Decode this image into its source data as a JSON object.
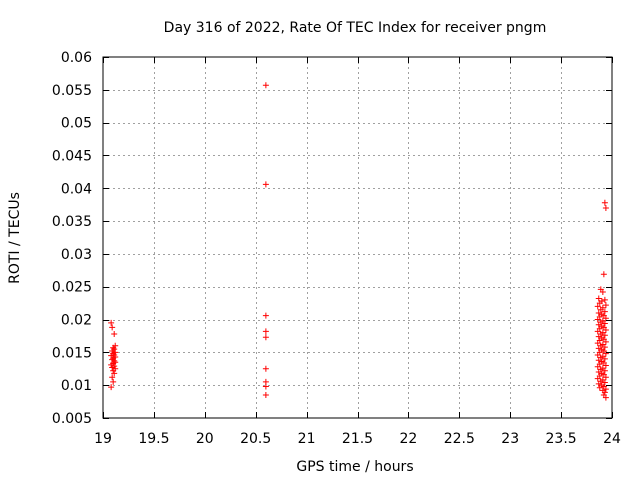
{
  "chart_data": {
    "type": "scatter",
    "title": "Day 316 of 2022, Rate Of TEC Index for receiver pngm",
    "xlabel": "GPS time / hours",
    "ylabel": "ROTI / TECUs",
    "xlim": [
      19,
      24
    ],
    "ylim": [
      0.005,
      0.06
    ],
    "x_ticks": [
      19,
      19.5,
      20,
      20.5,
      21,
      21.5,
      22,
      22.5,
      23,
      23.5,
      24
    ],
    "x_tick_labels": [
      "19",
      "19.5",
      "20",
      "20.5",
      "21",
      "21.5",
      "22",
      "22.5",
      "23",
      "23.5",
      "24"
    ],
    "y_ticks": [
      0.005,
      0.01,
      0.015,
      0.02,
      0.025,
      0.03,
      0.035,
      0.04,
      0.045,
      0.05,
      0.055,
      0.06
    ],
    "y_tick_labels": [
      "0.005",
      "0.01",
      "0.015",
      "0.02",
      "0.025",
      "0.03",
      "0.035",
      "0.04",
      "0.045",
      "0.05",
      "0.055",
      "0.06"
    ],
    "grid": true,
    "marker": "+",
    "marker_color": "#ff0000",
    "grid_color": "#a0a0a0",
    "series": [
      {
        "name": "ROTI",
        "points": [
          [
            19.08,
            0.0195
          ],
          [
            19.09,
            0.0188
          ],
          [
            19.11,
            0.0178
          ],
          [
            19.12,
            0.016
          ],
          [
            19.1,
            0.0157
          ],
          [
            19.11,
            0.0155
          ],
          [
            19.09,
            0.0152
          ],
          [
            19.12,
            0.015
          ],
          [
            19.1,
            0.0148
          ],
          [
            19.11,
            0.0146
          ],
          [
            19.08,
            0.0145
          ],
          [
            19.12,
            0.0143
          ],
          [
            19.1,
            0.0141
          ],
          [
            19.09,
            0.0139
          ],
          [
            19.11,
            0.0137
          ],
          [
            19.12,
            0.0135
          ],
          [
            19.1,
            0.0133
          ],
          [
            19.08,
            0.0131
          ],
          [
            19.11,
            0.0129
          ],
          [
            19.09,
            0.0127
          ],
          [
            19.12,
            0.0125
          ],
          [
            19.1,
            0.0122
          ],
          [
            19.11,
            0.0118
          ],
          [
            19.09,
            0.0112
          ],
          [
            19.1,
            0.0105
          ],
          [
            19.08,
            0.0097
          ],
          [
            20.6,
            0.0557
          ],
          [
            20.6,
            0.0406
          ],
          [
            20.6,
            0.0206
          ],
          [
            20.6,
            0.0182
          ],
          [
            20.6,
            0.0173
          ],
          [
            20.6,
            0.0125
          ],
          [
            20.6,
            0.0105
          ],
          [
            20.6,
            0.0098
          ],
          [
            20.6,
            0.0085
          ],
          [
            23.93,
            0.0378
          ],
          [
            23.94,
            0.037
          ],
          [
            23.92,
            0.0269
          ],
          [
            23.89,
            0.0246
          ],
          [
            23.91,
            0.0242
          ],
          [
            23.87,
            0.0232
          ],
          [
            23.93,
            0.023
          ],
          [
            23.9,
            0.0228
          ],
          [
            23.88,
            0.0225
          ],
          [
            23.94,
            0.0222
          ],
          [
            23.86,
            0.022
          ],
          [
            23.91,
            0.0218
          ],
          [
            23.89,
            0.0215
          ],
          [
            23.93,
            0.0212
          ],
          [
            23.87,
            0.021
          ],
          [
            23.9,
            0.0208
          ],
          [
            23.92,
            0.0206
          ],
          [
            23.88,
            0.0204
          ],
          [
            23.94,
            0.0202
          ],
          [
            23.86,
            0.02
          ],
          [
            23.91,
            0.0198
          ],
          [
            23.89,
            0.0196
          ],
          [
            23.93,
            0.0194
          ],
          [
            23.87,
            0.0192
          ],
          [
            23.9,
            0.019
          ],
          [
            23.92,
            0.0188
          ],
          [
            23.88,
            0.0186
          ],
          [
            23.94,
            0.0184
          ],
          [
            23.86,
            0.0182
          ],
          [
            23.91,
            0.018
          ],
          [
            23.89,
            0.0178
          ],
          [
            23.93,
            0.0176
          ],
          [
            23.87,
            0.0174
          ],
          [
            23.9,
            0.0172
          ],
          [
            23.92,
            0.017
          ],
          [
            23.88,
            0.0168
          ],
          [
            23.94,
            0.0166
          ],
          [
            23.86,
            0.0164
          ],
          [
            23.91,
            0.0162
          ],
          [
            23.89,
            0.016
          ],
          [
            23.93,
            0.0158
          ],
          [
            23.87,
            0.0156
          ],
          [
            23.9,
            0.0154
          ],
          [
            23.92,
            0.0152
          ],
          [
            23.88,
            0.015
          ],
          [
            23.94,
            0.0148
          ],
          [
            23.86,
            0.0146
          ],
          [
            23.91,
            0.0144
          ],
          [
            23.89,
            0.0142
          ],
          [
            23.93,
            0.014
          ],
          [
            23.87,
            0.0138
          ],
          [
            23.9,
            0.0136
          ],
          [
            23.92,
            0.0134
          ],
          [
            23.88,
            0.0132
          ],
          [
            23.94,
            0.013
          ],
          [
            23.86,
            0.0128
          ],
          [
            23.91,
            0.0126
          ],
          [
            23.89,
            0.0124
          ],
          [
            23.93,
            0.0122
          ],
          [
            23.87,
            0.012
          ],
          [
            23.9,
            0.0118
          ],
          [
            23.92,
            0.0116
          ],
          [
            23.88,
            0.0114
          ],
          [
            23.94,
            0.0112
          ],
          [
            23.86,
            0.011
          ],
          [
            23.91,
            0.0108
          ],
          [
            23.89,
            0.0106
          ],
          [
            23.93,
            0.0104
          ],
          [
            23.87,
            0.0102
          ],
          [
            23.9,
            0.01
          ],
          [
            23.92,
            0.0098
          ],
          [
            23.88,
            0.0096
          ],
          [
            23.94,
            0.0094
          ],
          [
            23.91,
            0.0092
          ],
          [
            23.93,
            0.0089
          ],
          [
            23.92,
            0.0085
          ],
          [
            23.94,
            0.0081
          ]
        ]
      }
    ]
  }
}
